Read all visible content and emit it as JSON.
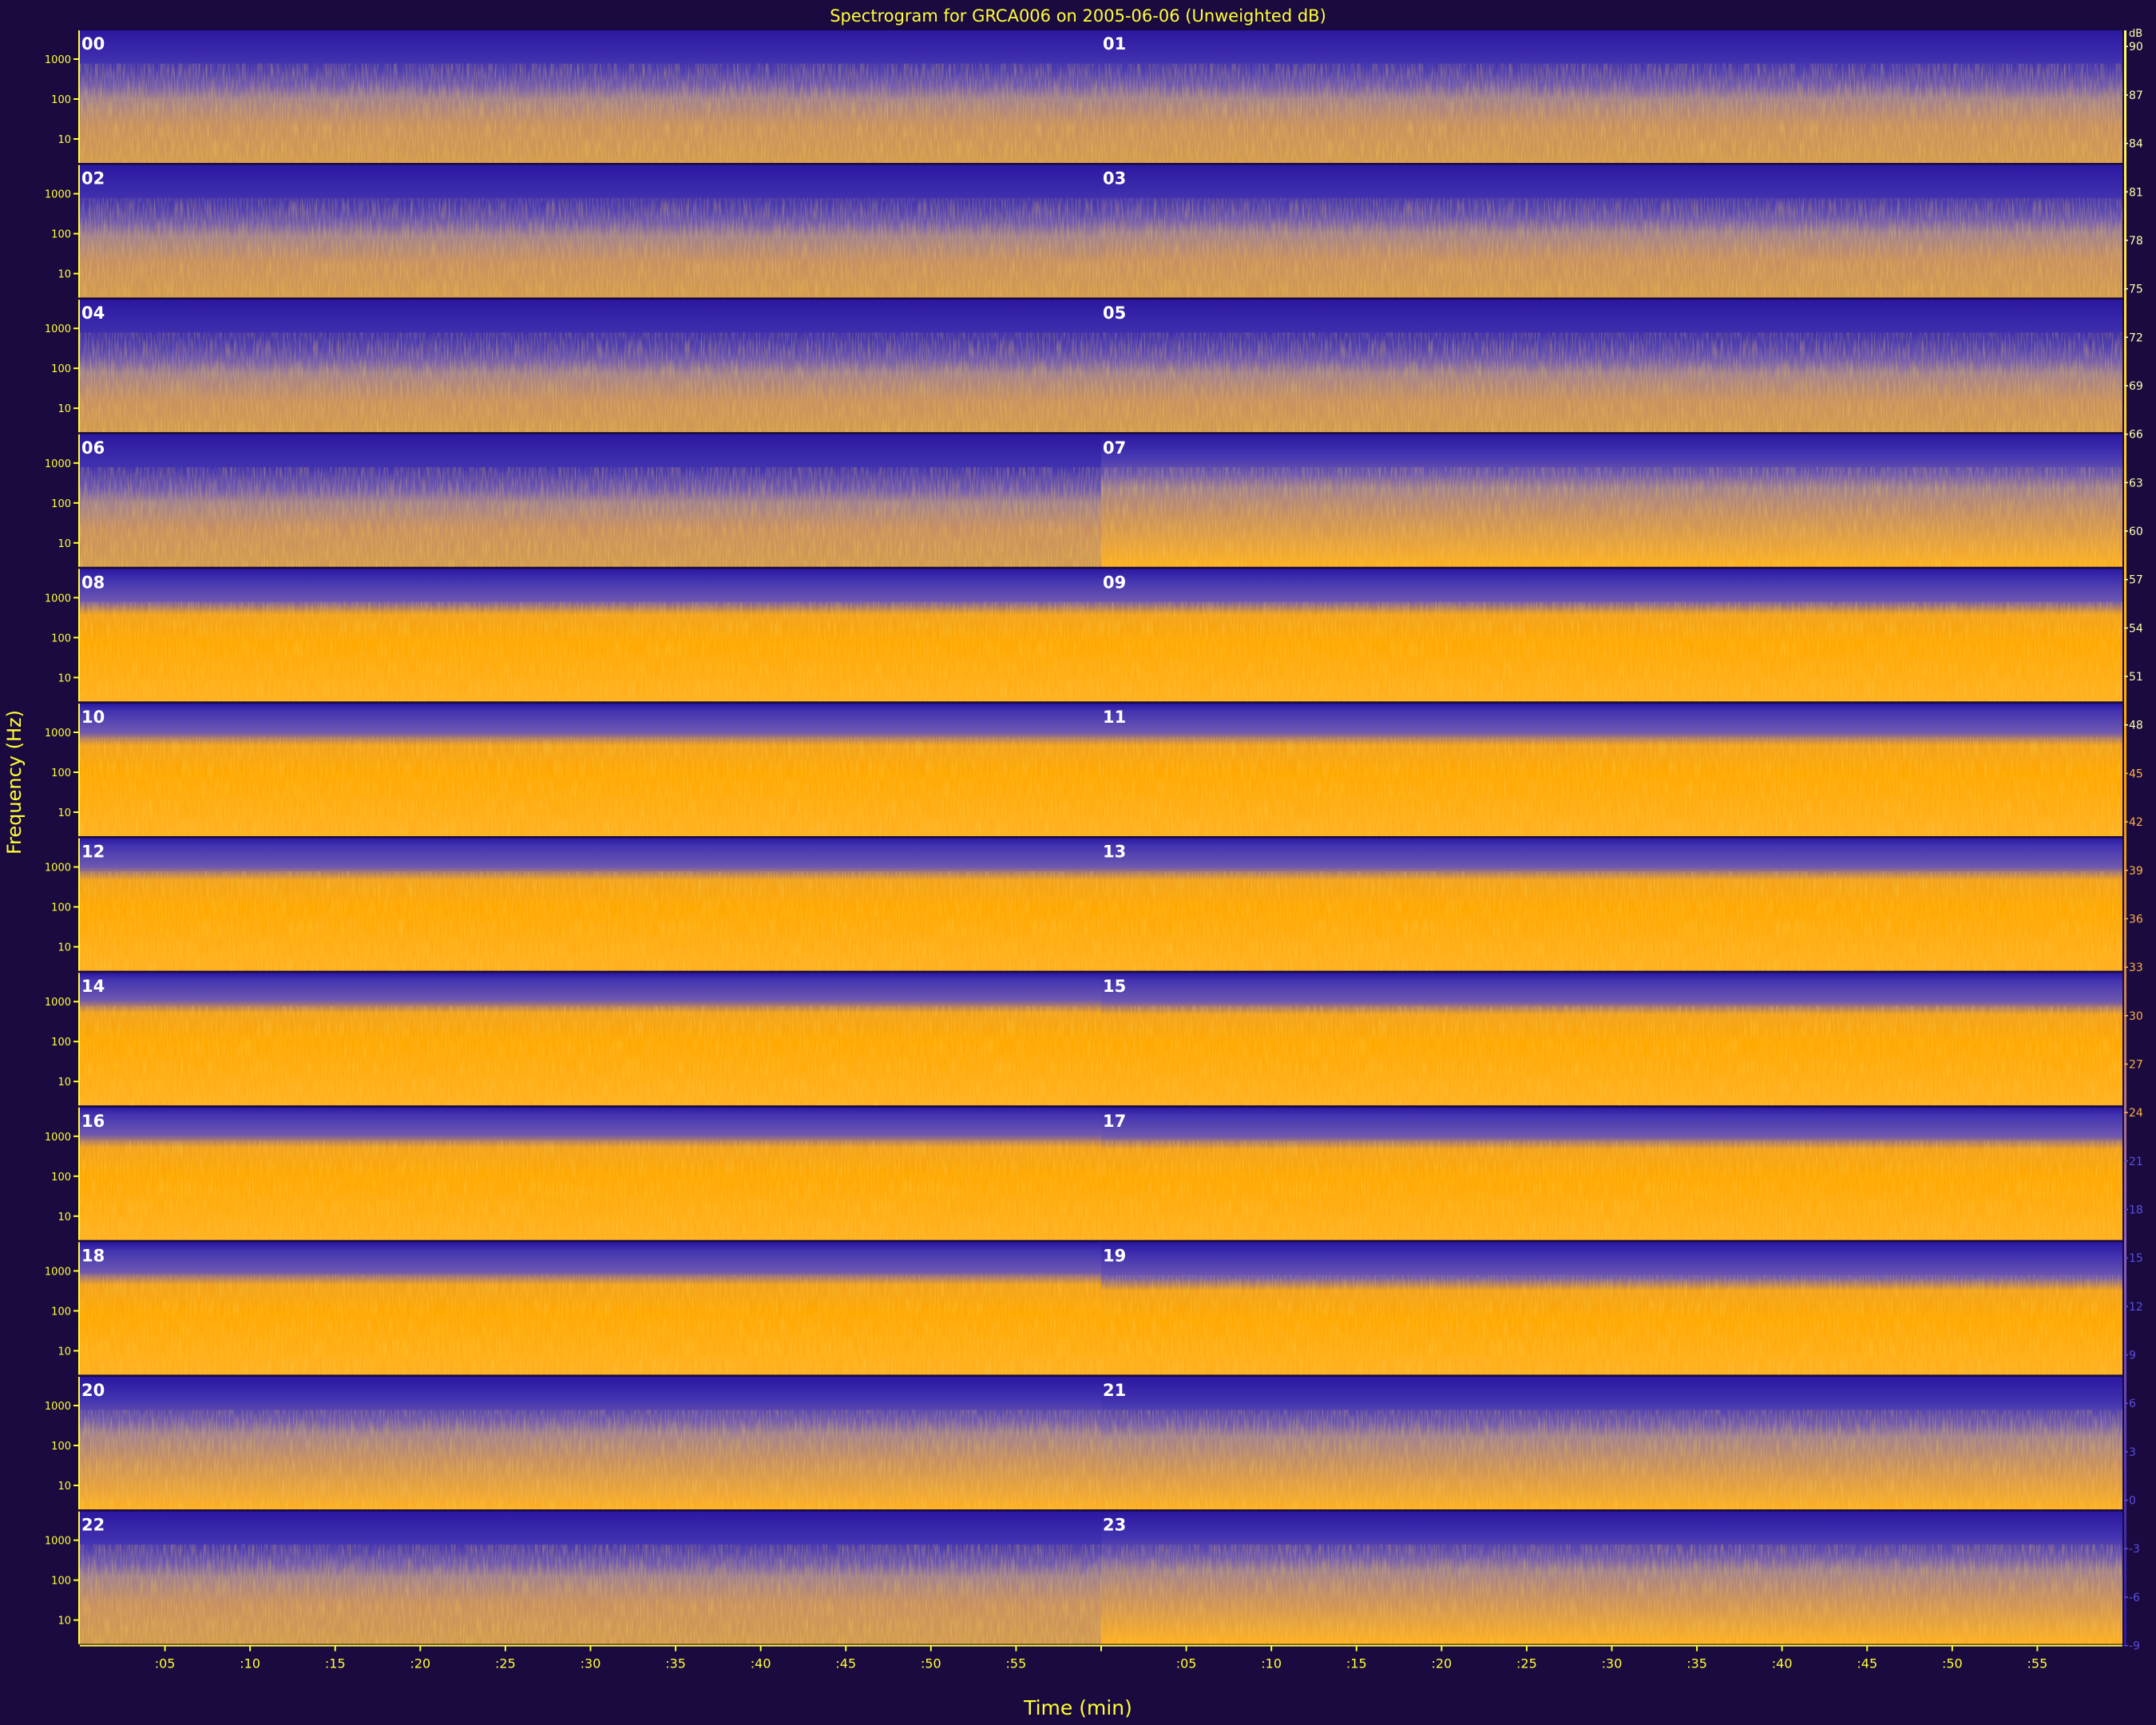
{
  "title": "Spectrogram for GRCA006 on 2005-06-06 (Unweighted dB)",
  "chart_data": {
    "type": "heatmap",
    "title": "Spectrogram for GRCA006 on 2005-06-06 (Unweighted dB)",
    "xlabel": "Time (min)",
    "ylabel": "Frequency (Hz)",
    "x_tick_labels": [
      ":05",
      ":10",
      ":15",
      ":20",
      ":25",
      ":30",
      ":35",
      ":40",
      ":45",
      ":50",
      ":55",
      "",
      ":05",
      ":10",
      ":15",
      ":20",
      ":25",
      ":30",
      ":35",
      ":40",
      ":45",
      ":50",
      ":55"
    ],
    "y_tick_labels": [
      "1000",
      "100",
      "10"
    ],
    "y_scale": "log",
    "colorbar_label": "dB",
    "colorbar_ticks": [
      90,
      87,
      84,
      81,
      78,
      75,
      72,
      69,
      66,
      63,
      60,
      57,
      54,
      51,
      48,
      45,
      42,
      39,
      36,
      33,
      30,
      27,
      24,
      21,
      18,
      15,
      12,
      9,
      6,
      3,
      0,
      -3,
      -6,
      -9
    ],
    "colorbar_range": [
      -9,
      91
    ],
    "colormap": [
      "#2a18a0",
      "#4a3ab8",
      "#9878a8",
      "#ffa500",
      "#ffc040"
    ],
    "hour_labels": [
      "00",
      "01",
      "02",
      "03",
      "04",
      "05",
      "06",
      "07",
      "08",
      "09",
      "10",
      "11",
      "12",
      "13",
      "14",
      "15",
      "16",
      "17",
      "18",
      "19",
      "20",
      "21",
      "22",
      "23"
    ],
    "hour_orange_level": [
      0.35,
      0.35,
      0.3,
      0.35,
      0.25,
      0.25,
      0.35,
      0.6,
      0.75,
      0.75,
      0.82,
      0.82,
      0.82,
      0.82,
      0.85,
      0.82,
      0.85,
      0.82,
      0.8,
      0.7,
      0.55,
      0.5,
      0.4,
      0.5
    ],
    "grid": false
  }
}
